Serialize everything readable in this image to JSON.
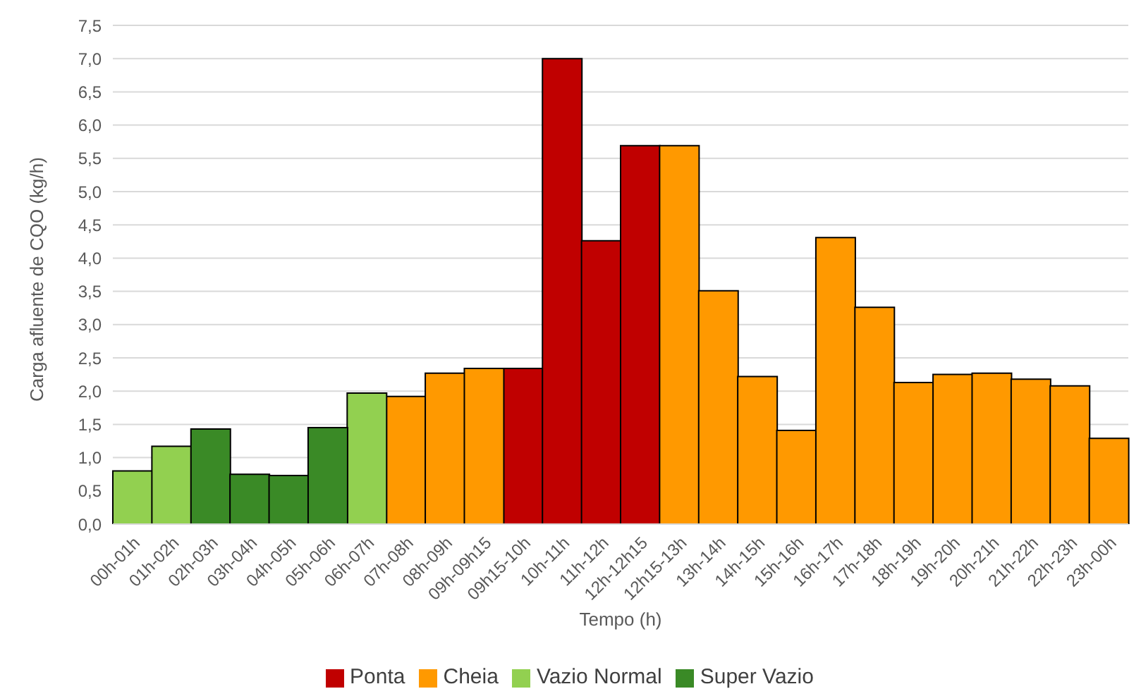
{
  "chart_data": {
    "type": "bar",
    "stacked": true,
    "xlabel": "Tempo (h)",
    "ylabel": "Carga afluente de CQO (kg/h)",
    "categories": [
      "00h-01h",
      "01h-02h",
      "02h-03h",
      "03h-04h",
      "04h-05h",
      "05h-06h",
      "06h-07h",
      "07h-08h",
      "08h-09h",
      "09h-09h15",
      "09h15-10h",
      "10h-11h",
      "11h-12h",
      "12h-12h15",
      "12h15-13h",
      "13h-14h",
      "14h-15h",
      "15h-16h",
      "16h-17h",
      "17h-18h",
      "18h-19h",
      "19h-20h",
      "20h-21h",
      "21h-22h",
      "22h-23h",
      "23h-00h"
    ],
    "series": [
      {
        "name": "Ponta",
        "color": "#c00000",
        "values": [
          null,
          null,
          null,
          null,
          null,
          null,
          null,
          null,
          null,
          null,
          2.34,
          7.0,
          4.26,
          5.69,
          null,
          null,
          null,
          null,
          null,
          null,
          null,
          null,
          null,
          null,
          null,
          null
        ]
      },
      {
        "name": "Cheia",
        "color": "#ff9900",
        "values": [
          null,
          null,
          null,
          null,
          null,
          null,
          null,
          1.92,
          2.27,
          2.34,
          null,
          null,
          null,
          null,
          5.69,
          3.51,
          2.22,
          1.41,
          4.31,
          3.26,
          2.13,
          2.25,
          2.27,
          2.18,
          2.08,
          1.29
        ]
      },
      {
        "name": "Vazio Normal",
        "color": "#92d050",
        "values": [
          0.8,
          1.17,
          null,
          null,
          null,
          null,
          1.97,
          null,
          null,
          null,
          null,
          null,
          null,
          null,
          null,
          null,
          null,
          null,
          null,
          null,
          null,
          null,
          null,
          null,
          null,
          null
        ]
      },
      {
        "name": "Super Vazio",
        "color": "#3a8a26",
        "values": [
          null,
          null,
          1.43,
          0.75,
          0.73,
          1.45,
          null,
          null,
          null,
          null,
          null,
          null,
          null,
          null,
          null,
          null,
          null,
          null,
          null,
          null,
          null,
          null,
          null,
          null,
          null,
          null
        ]
      }
    ],
    "ylim": [
      0,
      7.5
    ],
    "yticks": [
      {
        "value": 0,
        "label": "0,0"
      },
      {
        "value": 0.5,
        "label": "0,5"
      },
      {
        "value": 1,
        "label": "1,0"
      },
      {
        "value": 1.5,
        "label": "1,5"
      },
      {
        "value": 2,
        "label": "2,0"
      },
      {
        "value": 2.5,
        "label": "2,5"
      },
      {
        "value": 3,
        "label": "3,0"
      },
      {
        "value": 3.5,
        "label": "3,5"
      },
      {
        "value": 4,
        "label": "4,0"
      },
      {
        "value": 4.5,
        "label": "4,5"
      },
      {
        "value": 5,
        "label": "5,0"
      },
      {
        "value": 5.5,
        "label": "5,5"
      },
      {
        "value": 6,
        "label": "6,0"
      },
      {
        "value": 6.5,
        "label": "6,5"
      },
      {
        "value": 7,
        "label": "7,0"
      },
      {
        "value": 7.5,
        "label": "7,5"
      }
    ],
    "grid": "y",
    "legend": "bottom"
  }
}
